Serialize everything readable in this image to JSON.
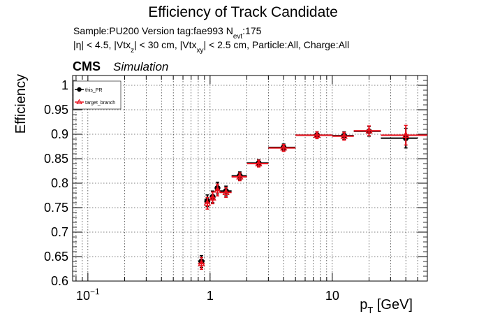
{
  "header": {
    "title": "Efficiency of Track Candidate",
    "line1_main": "Sample:PU200   Version tag:fae993  N",
    "line1_sub": "evt",
    "line1_tail": ":175",
    "line2_parts": [
      "|η| < 4.5, |Vtx",
      "z",
      "| < 30 cm, |Vtx",
      "xy",
      "| < 2.5 cm, Particle:All, Charge:All"
    ]
  },
  "cms_label": "CMS",
  "simulation_label": "Simulation",
  "chart_data": {
    "type": "scatter",
    "ylabel": "Efficiency",
    "xlabel_main": "p",
    "xlabel_sub": "T",
    "xlabel_unit": " [GeV]",
    "x_scale": "log",
    "xlim": [
      0.075,
      60
    ],
    "ylim": [
      0.6,
      1.02
    ],
    "grid": true,
    "legend_position": "top-left",
    "x_tick_labels": [
      {
        "value": 0.1,
        "base": "10",
        "exp": "−1"
      },
      {
        "value": 1,
        "base": "1",
        "exp": ""
      },
      {
        "value": 10,
        "base": "10",
        "exp": ""
      }
    ],
    "y_ticks": [
      0.6,
      0.65,
      0.7,
      0.75,
      0.8,
      0.85,
      0.9,
      0.95,
      1
    ],
    "y_tick_labels": [
      "0.6",
      "0.65",
      "0.7",
      "0.75",
      "0.8",
      "0.85",
      "0.9",
      "0.95",
      "1"
    ],
    "series": [
      {
        "name": "this_PR",
        "color": "#000000",
        "marker": "circle",
        "points": [
          {
            "x": 0.85,
            "xlo": 0.8,
            "xhi": 0.9,
            "y": 0.64,
            "yerr": 0.012
          },
          {
            "x": 0.95,
            "xlo": 0.9,
            "xhi": 1.0,
            "y": 0.764,
            "yerr": 0.012
          },
          {
            "x": 1.05,
            "xlo": 1.0,
            "xhi": 1.1,
            "y": 0.772,
            "yerr": 0.012
          },
          {
            "x": 1.15,
            "xlo": 1.1,
            "xhi": 1.2,
            "y": 0.79,
            "yerr": 0.012
          },
          {
            "x": 1.35,
            "xlo": 1.2,
            "xhi": 1.5,
            "y": 0.784,
            "yerr": 0.01
          },
          {
            "x": 1.75,
            "xlo": 1.5,
            "xhi": 2.0,
            "y": 0.815,
            "yerr": 0.008
          },
          {
            "x": 2.5,
            "xlo": 2.0,
            "xhi": 3.0,
            "y": 0.841,
            "yerr": 0.007
          },
          {
            "x": 4.0,
            "xlo": 3.0,
            "xhi": 5.0,
            "y": 0.873,
            "yerr": 0.007
          },
          {
            "x": 7.5,
            "xlo": 5.0,
            "xhi": 10.0,
            "y": 0.898,
            "yerr": 0.007
          },
          {
            "x": 12.5,
            "xlo": 10.0,
            "xhi": 15.0,
            "y": 0.897,
            "yerr": 0.008
          },
          {
            "x": 20.0,
            "xlo": 15.0,
            "xhi": 25.0,
            "y": 0.906,
            "yerr": 0.01
          },
          {
            "x": 40.0,
            "xlo": 25.0,
            "xhi": 50.0,
            "y": 0.892,
            "yerr": 0.02
          }
        ]
      },
      {
        "name": "target_branch",
        "color": "#e8101c",
        "marker": "triangle-open",
        "points": [
          {
            "x": 0.85,
            "xlo": 0.8,
            "xhi": 0.9,
            "y": 0.636,
            "yerr": 0.012
          },
          {
            "x": 0.95,
            "xlo": 0.9,
            "xhi": 1.0,
            "y": 0.759,
            "yerr": 0.012
          },
          {
            "x": 1.05,
            "xlo": 1.0,
            "xhi": 1.1,
            "y": 0.77,
            "yerr": 0.012
          },
          {
            "x": 1.15,
            "xlo": 1.1,
            "xhi": 1.2,
            "y": 0.786,
            "yerr": 0.012
          },
          {
            "x": 1.35,
            "xlo": 1.2,
            "xhi": 1.5,
            "y": 0.781,
            "yerr": 0.01
          },
          {
            "x": 1.75,
            "xlo": 1.5,
            "xhi": 2.0,
            "y": 0.813,
            "yerr": 0.008
          },
          {
            "x": 2.5,
            "xlo": 2.0,
            "xhi": 3.0,
            "y": 0.84,
            "yerr": 0.007
          },
          {
            "x": 4.0,
            "xlo": 3.0,
            "xhi": 5.0,
            "y": 0.872,
            "yerr": 0.007
          },
          {
            "x": 7.5,
            "xlo": 5.0,
            "xhi": 10.0,
            "y": 0.898,
            "yerr": 0.007
          },
          {
            "x": 12.5,
            "xlo": 10.0,
            "xhi": 15.0,
            "y": 0.896,
            "yerr": 0.008
          },
          {
            "x": 20.0,
            "xlo": 15.0,
            "xhi": 25.0,
            "y": 0.907,
            "yerr": 0.01
          },
          {
            "x": 40.0,
            "xlo": 25.0,
            "xhi": 60.0,
            "y": 0.898,
            "yerr": 0.02
          }
        ]
      }
    ]
  }
}
